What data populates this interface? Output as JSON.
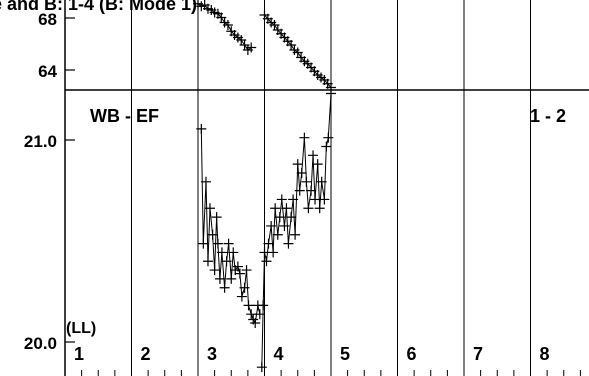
{
  "chart_data": [
    {
      "type": "scatter",
      "title": "e and B: 1-4 (B: Mode 1)",
      "y_ticks": [
        "68",
        "64"
      ],
      "ylim": [
        61.8,
        69.0
      ],
      "x_range": [
        1,
        9
      ],
      "segments": [
        {
          "x": [
            3.0,
            3.05,
            3.1,
            3.15,
            3.2,
            3.25,
            3.3,
            3.35,
            3.4,
            3.45,
            3.5,
            3.55,
            3.6,
            3.65,
            3.7,
            3.75,
            3.8
          ],
          "y": [
            68.7,
            68.5,
            68.6,
            68.3,
            68.2,
            68.0,
            67.9,
            67.6,
            67.2,
            67.0,
            66.5,
            66.2,
            66.0,
            65.8,
            65.4,
            65.0,
            65.2
          ]
        },
        {
          "x": [
            4.0,
            4.05,
            4.1,
            4.15,
            4.2,
            4.25,
            4.3,
            4.35,
            4.4,
            4.45,
            4.5,
            4.55,
            4.6,
            4.65,
            4.7,
            4.75,
            4.8,
            4.85,
            4.9,
            4.95,
            5.0
          ],
          "y": [
            67.8,
            67.5,
            67.2,
            67.0,
            66.6,
            66.3,
            66.0,
            65.7,
            65.4,
            65.0,
            64.8,
            64.4,
            64.1,
            63.9,
            63.6,
            63.3,
            63.0,
            62.8,
            62.6,
            62.3,
            62.0
          ]
        }
      ]
    },
    {
      "type": "scatter",
      "y_ticks": [
        "21.0",
        "20.0"
      ],
      "ylim": [
        19.8,
        21.42
      ],
      "x_range": [
        1,
        9
      ],
      "panel_label_left": "WB - EF",
      "panel_label_right": "1 - 2",
      "corner_label": "(LL)",
      "x_labels": [
        "1",
        "2",
        "3",
        "4",
        "5",
        "6",
        "7",
        "8"
      ],
      "segments": [
        {
          "x": [
            3.05,
            3.08,
            3.12,
            3.15,
            3.18,
            3.22,
            3.25,
            3.28,
            3.3,
            3.33,
            3.36,
            3.4,
            3.43,
            3.46,
            3.5,
            3.53,
            3.56,
            3.6,
            3.63,
            3.66,
            3.7,
            3.73,
            3.76,
            3.8,
            3.83,
            3.86,
            3.9,
            3.93
          ],
          "y": [
            21.2,
            20.55,
            20.9,
            20.45,
            20.75,
            20.6,
            20.4,
            20.7,
            20.55,
            20.35,
            20.5,
            20.3,
            20.45,
            20.55,
            20.35,
            20.5,
            20.4,
            20.42,
            20.38,
            20.25,
            20.3,
            20.4,
            20.2,
            20.15,
            20.12,
            20.1,
            20.2,
            20.15
          ]
        },
        {
          "x": [
            3.96,
            3.98,
            4.0,
            4.03,
            4.06,
            4.1,
            4.13,
            4.16,
            4.2,
            4.23,
            4.26,
            4.3,
            4.33,
            4.36,
            4.4,
            4.43,
            4.46,
            4.5,
            4.53,
            4.56,
            4.6,
            4.63,
            4.66,
            4.7,
            4.73,
            4.76,
            4.8,
            4.83,
            4.86,
            4.9,
            4.93,
            4.96,
            5.0
          ],
          "y": [
            19.85,
            20.2,
            20.5,
            20.45,
            20.55,
            20.65,
            20.5,
            20.75,
            20.6,
            20.7,
            20.8,
            20.65,
            20.75,
            20.55,
            20.7,
            20.8,
            20.6,
            21.0,
            20.85,
            20.95,
            21.15,
            20.9,
            20.75,
            20.85,
            21.05,
            20.8,
            21.0,
            20.75,
            20.9,
            20.8,
            21.1,
            21.15,
            21.4
          ]
        }
      ]
    }
  ]
}
